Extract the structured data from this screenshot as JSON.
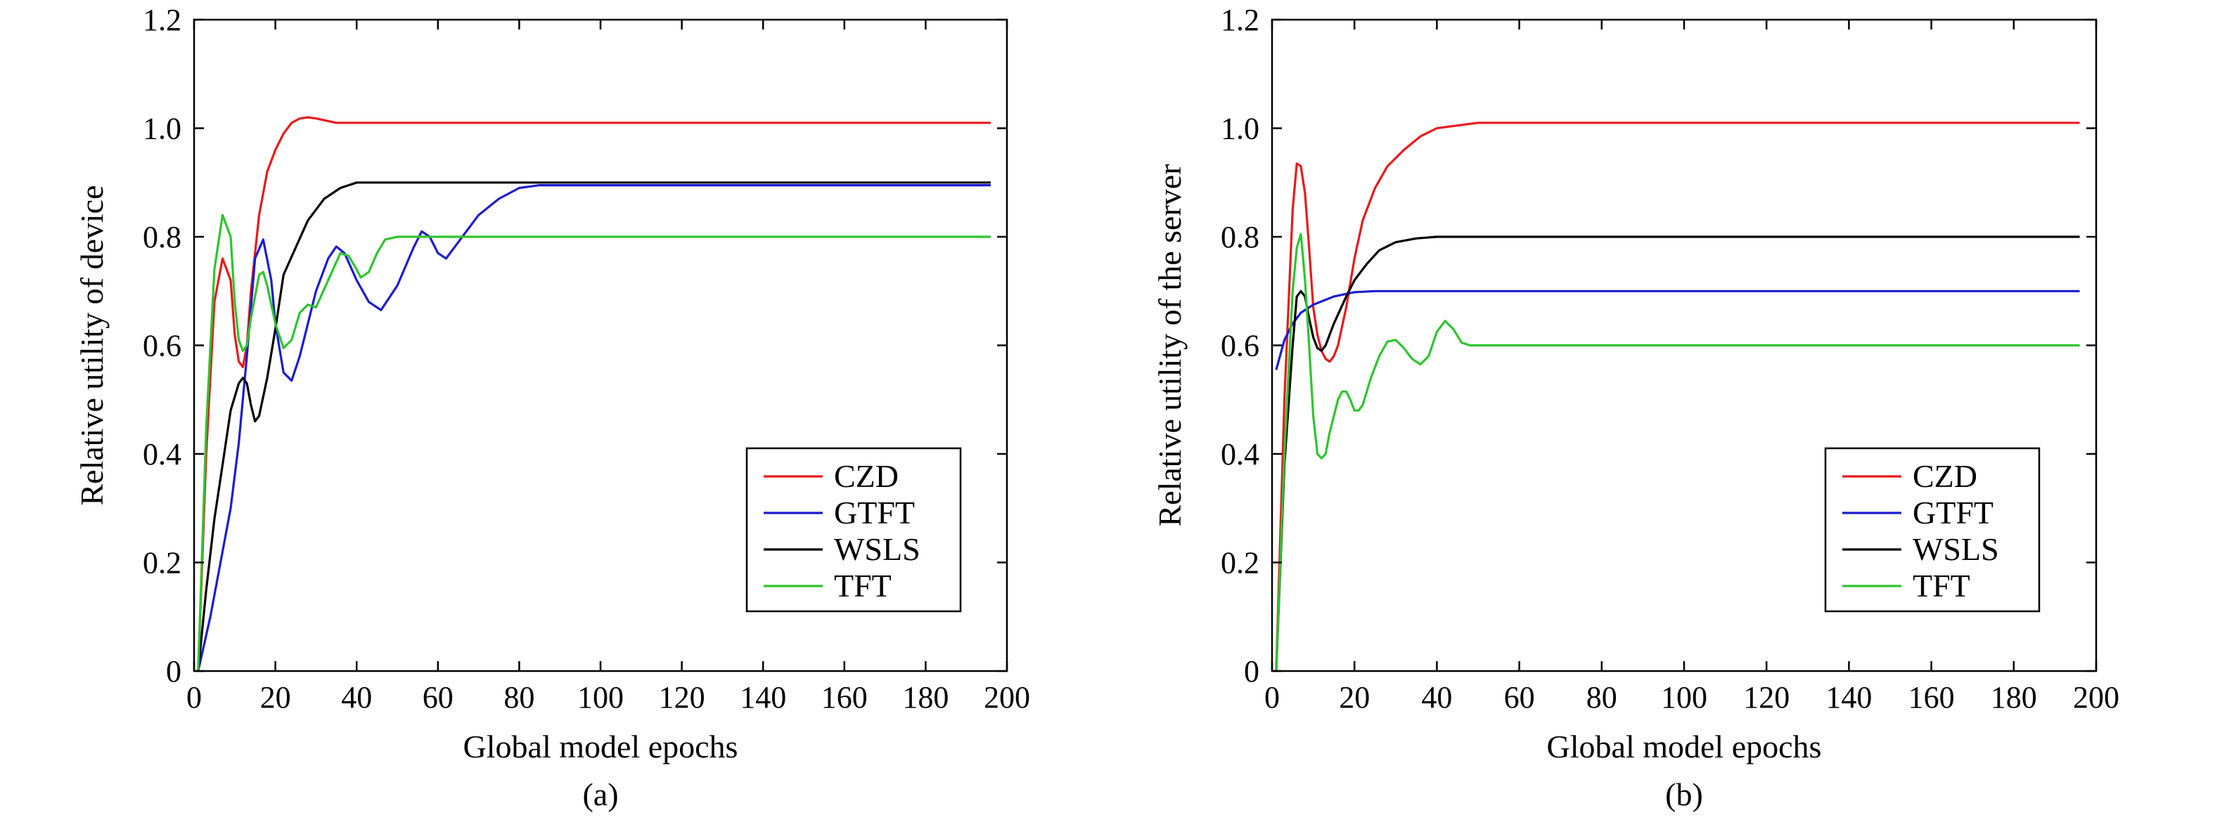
{
  "chart_data": [
    {
      "type": "line",
      "caption": "(a)",
      "xlabel": "Global model epochs",
      "ylabel": "Relative utility of device",
      "xlim": [
        0,
        200
      ],
      "ylim": [
        0,
        1.2
      ],
      "xticks": [
        0,
        20,
        40,
        60,
        80,
        100,
        120,
        140,
        160,
        180,
        200
      ],
      "xtick_labels": [
        "0",
        "20",
        "40",
        "60",
        "80",
        "100",
        "120",
        "140",
        "160",
        "180",
        "200"
      ],
      "yticks": [
        0,
        0.2,
        0.4,
        0.6,
        0.8,
        1.0,
        1.2
      ],
      "ytick_labels": [
        "0",
        "0.2",
        "0.4",
        "0.6",
        "0.8",
        "1.0",
        "1.2"
      ],
      "grid": false,
      "legend_position": "bottom-right",
      "series": [
        {
          "name": "CZD",
          "color": "#e8191c",
          "points": [
            [
              1,
              0
            ],
            [
              3,
              0.4
            ],
            [
              5,
              0.68
            ],
            [
              7,
              0.76
            ],
            [
              9,
              0.72
            ],
            [
              10,
              0.62
            ],
            [
              11,
              0.57
            ],
            [
              12,
              0.56
            ],
            [
              13,
              0.6
            ],
            [
              14,
              0.7
            ],
            [
              16,
              0.84
            ],
            [
              18,
              0.92
            ],
            [
              20,
              0.96
            ],
            [
              22,
              0.99
            ],
            [
              24,
              1.01
            ],
            [
              26,
              1.018
            ],
            [
              28,
              1.02
            ],
            [
              30,
              1.018
            ],
            [
              35,
              1.01
            ],
            [
              40,
              1.01
            ],
            [
              60,
              1.01
            ],
            [
              100,
              1.01
            ],
            [
              150,
              1.01
            ],
            [
              196,
              1.01
            ]
          ]
        },
        {
          "name": "GTFT",
          "color": "#1c1ccf",
          "points": [
            [
              1,
              0
            ],
            [
              4,
              0.1
            ],
            [
              7,
              0.22
            ],
            [
              9,
              0.3
            ],
            [
              11,
              0.42
            ],
            [
              13,
              0.58
            ],
            [
              15,
              0.76
            ],
            [
              17,
              0.795
            ],
            [
              19,
              0.72
            ],
            [
              20,
              0.64
            ],
            [
              22,
              0.55
            ],
            [
              24,
              0.535
            ],
            [
              26,
              0.58
            ],
            [
              30,
              0.7
            ],
            [
              33,
              0.76
            ],
            [
              35,
              0.782
            ],
            [
              37,
              0.77
            ],
            [
              40,
              0.72
            ],
            [
              43,
              0.68
            ],
            [
              46,
              0.665
            ],
            [
              50,
              0.71
            ],
            [
              54,
              0.78
            ],
            [
              56,
              0.81
            ],
            [
              58,
              0.8
            ],
            [
              60,
              0.77
            ],
            [
              62,
              0.76
            ],
            [
              65,
              0.79
            ],
            [
              70,
              0.84
            ],
            [
              75,
              0.87
            ],
            [
              80,
              0.89
            ],
            [
              85,
              0.895
            ],
            [
              100,
              0.895
            ],
            [
              150,
              0.895
            ],
            [
              196,
              0.895
            ]
          ]
        },
        {
          "name": "WSLS",
          "color": "#000000",
          "points": [
            [
              1,
              0
            ],
            [
              3,
              0.15
            ],
            [
              5,
              0.28
            ],
            [
              7,
              0.38
            ],
            [
              9,
              0.48
            ],
            [
              11,
              0.53
            ],
            [
              12,
              0.54
            ],
            [
              13,
              0.53
            ],
            [
              14,
              0.49
            ],
            [
              15,
              0.46
            ],
            [
              16,
              0.47
            ],
            [
              18,
              0.54
            ],
            [
              20,
              0.63
            ],
            [
              22,
              0.73
            ],
            [
              25,
              0.78
            ],
            [
              28,
              0.83
            ],
            [
              32,
              0.87
            ],
            [
              36,
              0.89
            ],
            [
              40,
              0.9
            ],
            [
              45,
              0.9
            ],
            [
              60,
              0.9
            ],
            [
              100,
              0.9
            ],
            [
              150,
              0.9
            ],
            [
              196,
              0.9
            ]
          ]
        },
        {
          "name": "TFT",
          "color": "#2fc42f",
          "points": [
            [
              1,
              0
            ],
            [
              3,
              0.45
            ],
            [
              5,
              0.74
            ],
            [
              7,
              0.84
            ],
            [
              9,
              0.8
            ],
            [
              10,
              0.68
            ],
            [
              11,
              0.61
            ],
            [
              12,
              0.59
            ],
            [
              13,
              0.6
            ],
            [
              14,
              0.65
            ],
            [
              16,
              0.73
            ],
            [
              17,
              0.735
            ],
            [
              18,
              0.71
            ],
            [
              20,
              0.64
            ],
            [
              22,
              0.595
            ],
            [
              24,
              0.61
            ],
            [
              26,
              0.66
            ],
            [
              28,
              0.675
            ],
            [
              30,
              0.67
            ],
            [
              33,
              0.72
            ],
            [
              36,
              0.77
            ],
            [
              38,
              0.765
            ],
            [
              40,
              0.74
            ],
            [
              41,
              0.725
            ],
            [
              43,
              0.735
            ],
            [
              45,
              0.77
            ],
            [
              47,
              0.795
            ],
            [
              50,
              0.8
            ],
            [
              60,
              0.8
            ],
            [
              100,
              0.8
            ],
            [
              150,
              0.8
            ],
            [
              196,
              0.8
            ]
          ]
        }
      ]
    },
    {
      "type": "line",
      "caption": "(b)",
      "xlabel": "Global model epochs",
      "ylabel": "Relative utility of the server",
      "xlim": [
        0,
        200
      ],
      "ylim": [
        0,
        1.2
      ],
      "xticks": [
        0,
        20,
        40,
        60,
        80,
        100,
        120,
        140,
        160,
        180,
        200
      ],
      "xtick_labels": [
        "0",
        "20",
        "40",
        "60",
        "80",
        "100",
        "120",
        "140",
        "160",
        "180",
        "200"
      ],
      "yticks": [
        0,
        0.2,
        0.4,
        0.6,
        0.8,
        1.0,
        1.2
      ],
      "ytick_labels": [
        "0",
        "0.2",
        "0.4",
        "0.6",
        "0.8",
        "1.0",
        "1.2"
      ],
      "grid": false,
      "legend_position": "bottom-right",
      "series": [
        {
          "name": "CZD",
          "color": "#e8191c",
          "points": [
            [
              1,
              0
            ],
            [
              3,
              0.5
            ],
            [
              5,
              0.85
            ],
            [
              6,
              0.935
            ],
            [
              7,
              0.93
            ],
            [
              8,
              0.88
            ],
            [
              9,
              0.78
            ],
            [
              10,
              0.67
            ],
            [
              11,
              0.62
            ],
            [
              12,
              0.59
            ],
            [
              13,
              0.575
            ],
            [
              14,
              0.57
            ],
            [
              15,
              0.58
            ],
            [
              16,
              0.6
            ],
            [
              18,
              0.67
            ],
            [
              20,
              0.76
            ],
            [
              22,
              0.83
            ],
            [
              25,
              0.89
            ],
            [
              28,
              0.93
            ],
            [
              32,
              0.96
            ],
            [
              36,
              0.985
            ],
            [
              40,
              1.0
            ],
            [
              45,
              1.005
            ],
            [
              50,
              1.01
            ],
            [
              60,
              1.01
            ],
            [
              100,
              1.01
            ],
            [
              150,
              1.01
            ],
            [
              196,
              1.01
            ]
          ]
        },
        {
          "name": "GTFT",
          "color": "#1c1ccf",
          "points": [
            [
              1,
              0.555
            ],
            [
              3,
              0.61
            ],
            [
              5,
              0.64
            ],
            [
              7,
              0.66
            ],
            [
              10,
              0.675
            ],
            [
              15,
              0.69
            ],
            [
              20,
              0.698
            ],
            [
              25,
              0.7
            ],
            [
              40,
              0.7
            ],
            [
              100,
              0.7
            ],
            [
              150,
              0.7
            ],
            [
              196,
              0.7
            ]
          ]
        },
        {
          "name": "WSLS",
          "color": "#000000",
          "points": [
            [
              1,
              0
            ],
            [
              3,
              0.38
            ],
            [
              5,
              0.6
            ],
            [
              6,
              0.69
            ],
            [
              7,
              0.7
            ],
            [
              8,
              0.69
            ],
            [
              9,
              0.65
            ],
            [
              10,
              0.615
            ],
            [
              11,
              0.595
            ],
            [
              12,
              0.59
            ],
            [
              13,
              0.6
            ],
            [
              15,
              0.64
            ],
            [
              18,
              0.69
            ],
            [
              20,
              0.72
            ],
            [
              23,
              0.75
            ],
            [
              26,
              0.775
            ],
            [
              30,
              0.79
            ],
            [
              35,
              0.797
            ],
            [
              40,
              0.8
            ],
            [
              50,
              0.8
            ],
            [
              100,
              0.8
            ],
            [
              150,
              0.8
            ],
            [
              196,
              0.8
            ]
          ]
        },
        {
          "name": "TFT",
          "color": "#2fc42f",
          "points": [
            [
              1,
              0
            ],
            [
              3,
              0.4
            ],
            [
              5,
              0.7
            ],
            [
              6,
              0.78
            ],
            [
              7,
              0.805
            ],
            [
              8,
              0.72
            ],
            [
              9,
              0.6
            ],
            [
              10,
              0.47
            ],
            [
              11,
              0.4
            ],
            [
              12,
              0.392
            ],
            [
              13,
              0.4
            ],
            [
              14,
              0.44
            ],
            [
              16,
              0.5
            ],
            [
              17,
              0.515
            ],
            [
              18,
              0.515
            ],
            [
              19,
              0.5
            ],
            [
              20,
              0.48
            ],
            [
              21,
              0.48
            ],
            [
              22,
              0.49
            ],
            [
              24,
              0.54
            ],
            [
              26,
              0.58
            ],
            [
              28,
              0.607
            ],
            [
              30,
              0.61
            ],
            [
              32,
              0.595
            ],
            [
              34,
              0.575
            ],
            [
              36,
              0.565
            ],
            [
              38,
              0.58
            ],
            [
              40,
              0.625
            ],
            [
              42,
              0.645
            ],
            [
              44,
              0.63
            ],
            [
              46,
              0.605
            ],
            [
              48,
              0.6
            ],
            [
              55,
              0.6
            ],
            [
              100,
              0.6
            ],
            [
              150,
              0.6
            ],
            [
              196,
              0.6
            ]
          ]
        }
      ]
    }
  ]
}
